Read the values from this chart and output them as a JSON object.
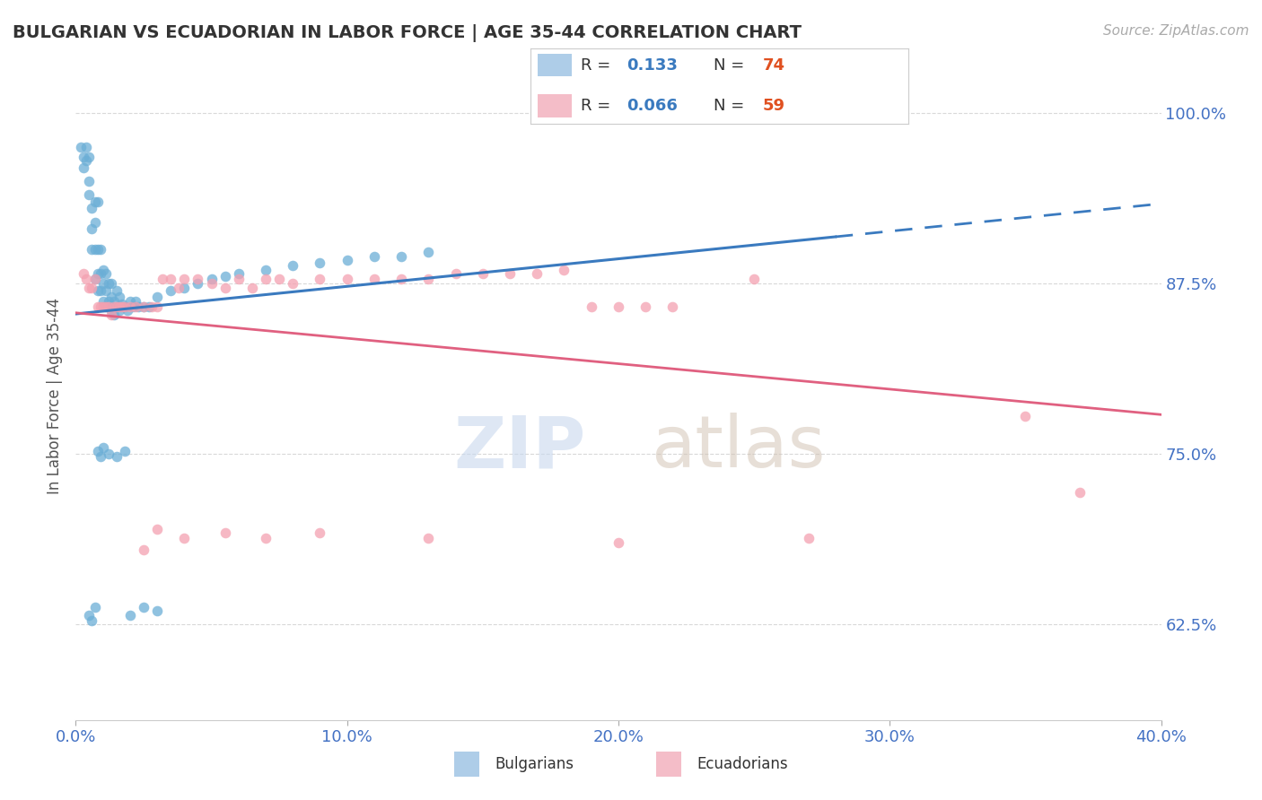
{
  "title": "BULGARIAN VS ECUADORIAN IN LABOR FORCE | AGE 35-44 CORRELATION CHART",
  "source": "Source: ZipAtlas.com",
  "ylabel": "In Labor Force | Age 35-44",
  "xlim": [
    0.0,
    0.4
  ],
  "ylim": [
    0.555,
    1.03
  ],
  "xticks": [
    0.0,
    0.1,
    0.2,
    0.3,
    0.4
  ],
  "xtick_labels": [
    "0.0%",
    "10.0%",
    "20.0%",
    "30.0%",
    "40.0%"
  ],
  "yticks": [
    0.625,
    0.75,
    0.875,
    1.0
  ],
  "ytick_labels": [
    "62.5%",
    "75.0%",
    "87.5%",
    "100.0%"
  ],
  "bulgarian_color": "#6baed6",
  "ecuadorian_color": "#f4a0b0",
  "trend_blue_color": "#3a7abf",
  "trend_pink_color": "#e06080",
  "legend_blue_fill": "#aecde8",
  "legend_pink_fill": "#f4bdc8",
  "R_bulgarian": 0.133,
  "N_bulgarian": 74,
  "R_ecuadorian": 0.066,
  "N_ecuadorian": 59,
  "background_color": "#ffffff",
  "grid_color": "#d0d0d0",
  "title_color": "#333333",
  "axis_label_color": "#555555",
  "tick_color": "#4472c4",
  "bulgarian_x": [
    0.002,
    0.003,
    0.003,
    0.004,
    0.004,
    0.005,
    0.005,
    0.005,
    0.006,
    0.006,
    0.006,
    0.007,
    0.007,
    0.007,
    0.007,
    0.008,
    0.008,
    0.008,
    0.008,
    0.009,
    0.009,
    0.009,
    0.01,
    0.01,
    0.01,
    0.011,
    0.011,
    0.011,
    0.012,
    0.012,
    0.013,
    0.013,
    0.013,
    0.014,
    0.014,
    0.015,
    0.015,
    0.016,
    0.016,
    0.017,
    0.018,
    0.019,
    0.02,
    0.021,
    0.022,
    0.023,
    0.025,
    0.027,
    0.03,
    0.035,
    0.04,
    0.045,
    0.05,
    0.055,
    0.06,
    0.07,
    0.08,
    0.09,
    0.1,
    0.11,
    0.12,
    0.13,
    0.005,
    0.006,
    0.007,
    0.02,
    0.025,
    0.03,
    0.008,
    0.009,
    0.01,
    0.012,
    0.015,
    0.018
  ],
  "bulgarian_y": [
    0.975,
    0.968,
    0.96,
    0.975,
    0.965,
    0.968,
    0.95,
    0.94,
    0.93,
    0.915,
    0.9,
    0.935,
    0.92,
    0.9,
    0.878,
    0.935,
    0.9,
    0.882,
    0.87,
    0.9,
    0.882,
    0.87,
    0.885,
    0.875,
    0.862,
    0.882,
    0.87,
    0.858,
    0.875,
    0.862,
    0.875,
    0.865,
    0.855,
    0.862,
    0.852,
    0.87,
    0.858,
    0.865,
    0.855,
    0.86,
    0.858,
    0.855,
    0.862,
    0.858,
    0.862,
    0.858,
    0.858,
    0.858,
    0.865,
    0.87,
    0.872,
    0.875,
    0.878,
    0.88,
    0.882,
    0.885,
    0.888,
    0.89,
    0.892,
    0.895,
    0.895,
    0.898,
    0.632,
    0.628,
    0.638,
    0.632,
    0.638,
    0.635,
    0.752,
    0.748,
    0.755,
    0.75,
    0.748,
    0.752
  ],
  "ecuadorian_x": [
    0.003,
    0.004,
    0.005,
    0.006,
    0.007,
    0.008,
    0.009,
    0.01,
    0.011,
    0.012,
    0.013,
    0.014,
    0.015,
    0.016,
    0.017,
    0.018,
    0.02,
    0.022,
    0.025,
    0.028,
    0.03,
    0.032,
    0.035,
    0.038,
    0.04,
    0.045,
    0.05,
    0.055,
    0.06,
    0.065,
    0.07,
    0.075,
    0.08,
    0.09,
    0.1,
    0.11,
    0.12,
    0.13,
    0.14,
    0.15,
    0.16,
    0.17,
    0.18,
    0.19,
    0.2,
    0.21,
    0.22,
    0.25,
    0.35,
    0.37,
    0.025,
    0.03,
    0.04,
    0.055,
    0.07,
    0.09,
    0.13,
    0.2,
    0.27
  ],
  "ecuadorian_y": [
    0.882,
    0.878,
    0.872,
    0.872,
    0.878,
    0.858,
    0.858,
    0.858,
    0.858,
    0.858,
    0.852,
    0.858,
    0.858,
    0.858,
    0.858,
    0.858,
    0.858,
    0.858,
    0.858,
    0.858,
    0.858,
    0.878,
    0.878,
    0.872,
    0.878,
    0.878,
    0.875,
    0.872,
    0.878,
    0.872,
    0.878,
    0.878,
    0.875,
    0.878,
    0.878,
    0.878,
    0.878,
    0.878,
    0.882,
    0.882,
    0.882,
    0.882,
    0.885,
    0.858,
    0.858,
    0.858,
    0.858,
    0.878,
    0.778,
    0.722,
    0.68,
    0.695,
    0.688,
    0.692,
    0.688,
    0.692,
    0.688,
    0.685,
    0.688
  ]
}
